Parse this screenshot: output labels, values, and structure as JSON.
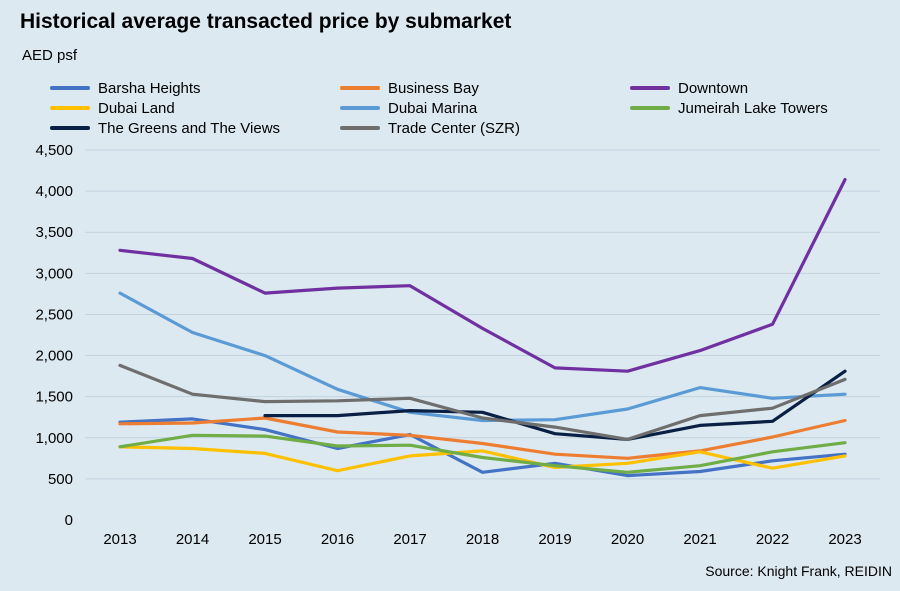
{
  "title": "Historical average transacted price by submarket",
  "unit_label": "AED psf",
  "source": "Source: Knight Frank, REIDIN",
  "chart_data": {
    "type": "line",
    "title": "Historical average transacted price by submarket",
    "ylabel": "AED psf",
    "xlabel": "",
    "x": [
      "2013",
      "2014",
      "2015",
      "2016",
      "2017",
      "2018",
      "2019",
      "2020",
      "2021",
      "2022",
      "2023"
    ],
    "ylim": [
      0,
      4500
    ],
    "yticks": [
      0,
      500,
      1000,
      1500,
      2000,
      2500,
      3000,
      3500,
      4000,
      4500
    ],
    "ytick_labels": [
      "0",
      "500",
      "1,000",
      "1,500",
      "2,000",
      "2,500",
      "3,000",
      "3,500",
      "4,000",
      "4,500"
    ],
    "grid": true,
    "legend_position": "top",
    "series": [
      {
        "name": "Barsha Heights",
        "color": "#4472c4",
        "values": [
          1190,
          1230,
          1100,
          870,
          1040,
          580,
          690,
          540,
          590,
          720,
          800
        ]
      },
      {
        "name": "Business Bay",
        "color": "#ed7d31",
        "values": [
          1170,
          1180,
          1240,
          1070,
          1030,
          930,
          800,
          750,
          840,
          1010,
          1210
        ]
      },
      {
        "name": "Downtown",
        "color": "#7030a0",
        "values": [
          3280,
          3180,
          2760,
          2820,
          2850,
          2330,
          1850,
          1810,
          2060,
          2380,
          4140
        ]
      },
      {
        "name": "Dubai Land",
        "color": "#ffc000",
        "values": [
          890,
          870,
          810,
          600,
          780,
          840,
          640,
          690,
          830,
          630,
          780
        ]
      },
      {
        "name": "Dubai Marina",
        "color": "#5b9bd5",
        "values": [
          2760,
          2280,
          2000,
          1590,
          1310,
          1210,
          1220,
          1350,
          1610,
          1480,
          1530
        ]
      },
      {
        "name": "Jumeirah Lake Towers",
        "color": "#70ad47",
        "values": [
          890,
          1030,
          1020,
          900,
          910,
          760,
          660,
          580,
          660,
          830,
          940
        ]
      },
      {
        "name": "The Greens and The Views",
        "color": "#0a1f44",
        "values": [
          null,
          null,
          1270,
          1270,
          1330,
          1310,
          1050,
          980,
          1150,
          1200,
          1810
        ]
      },
      {
        "name": "Trade Center (SZR)",
        "color": "#6e6e6e",
        "values": [
          1880,
          1530,
          1440,
          1450,
          1480,
          1240,
          1130,
          980,
          1270,
          1360,
          1710
        ]
      }
    ]
  }
}
